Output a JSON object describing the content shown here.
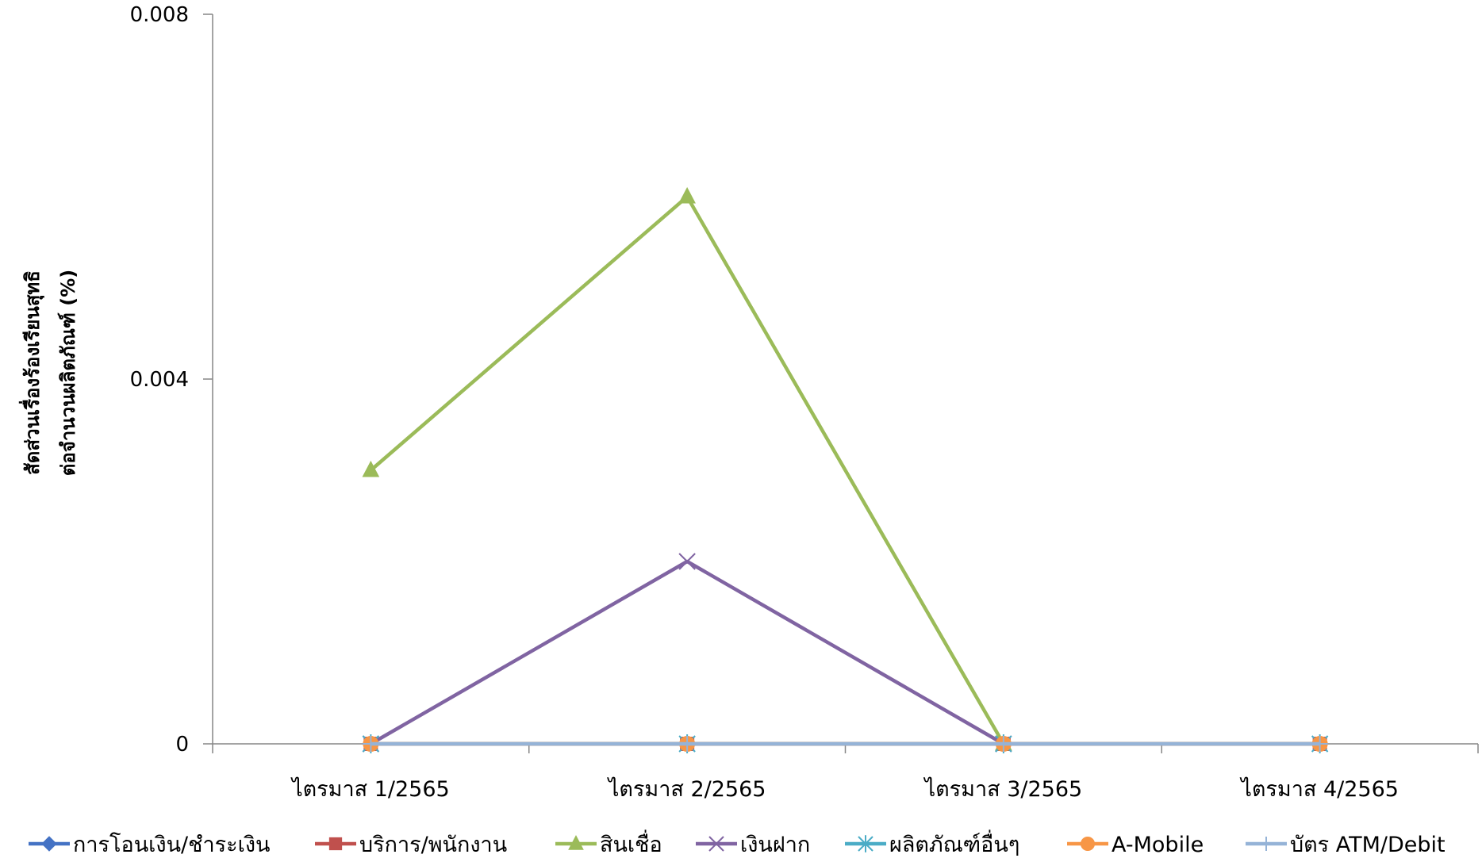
{
  "chart_data": {
    "type": "line",
    "title": "",
    "xlabel": "",
    "ylabel_lines": [
      "สัดส่วนเรื่องร้องเรียนสุทธิ",
      "ต่อจำนวนผลิตภัณฑ์ (%)"
    ],
    "categories": [
      "ไตรมาส 1/2565",
      "ไตรมาส 2/2565",
      "ไตรมาส 3/2565",
      "ไตรมาส 4/2565"
    ],
    "ylim": [
      0,
      0.008
    ],
    "yticks": [
      0,
      0.004,
      0.008
    ],
    "ytick_labels": [
      "0",
      "0.004",
      "0.008"
    ],
    "grid": false,
    "legend_position": "bottom",
    "series": [
      {
        "name": "การโอนเงิน/ชำระเงิน",
        "color": "#4472C4",
        "marker": "diamond",
        "values": [
          0,
          0,
          0,
          0
        ]
      },
      {
        "name": "บริการ/พนักงาน",
        "color": "#C0504D",
        "marker": "square",
        "values": [
          0,
          0,
          0,
          0
        ]
      },
      {
        "name": "สินเชื่อ",
        "color": "#9BBB59",
        "marker": "triangle",
        "values": [
          0.003,
          0.006,
          0,
          null
        ]
      },
      {
        "name": "เงินฝาก",
        "color": "#8064A2",
        "marker": "x",
        "values": [
          0,
          0.002,
          0,
          null
        ]
      },
      {
        "name": "ผลิตภัณฑ์อื่นๆ",
        "color": "#4BACC6",
        "marker": "star",
        "values": [
          0,
          0,
          0,
          0
        ]
      },
      {
        "name": "A-Mobile",
        "color": "#F79646",
        "marker": "circle",
        "values": [
          0,
          0,
          0,
          0
        ]
      },
      {
        "name": "บัตร ATM/Debit",
        "color": "#95B3D7",
        "marker": "plus",
        "values": [
          0,
          0,
          0,
          0
        ]
      }
    ]
  }
}
